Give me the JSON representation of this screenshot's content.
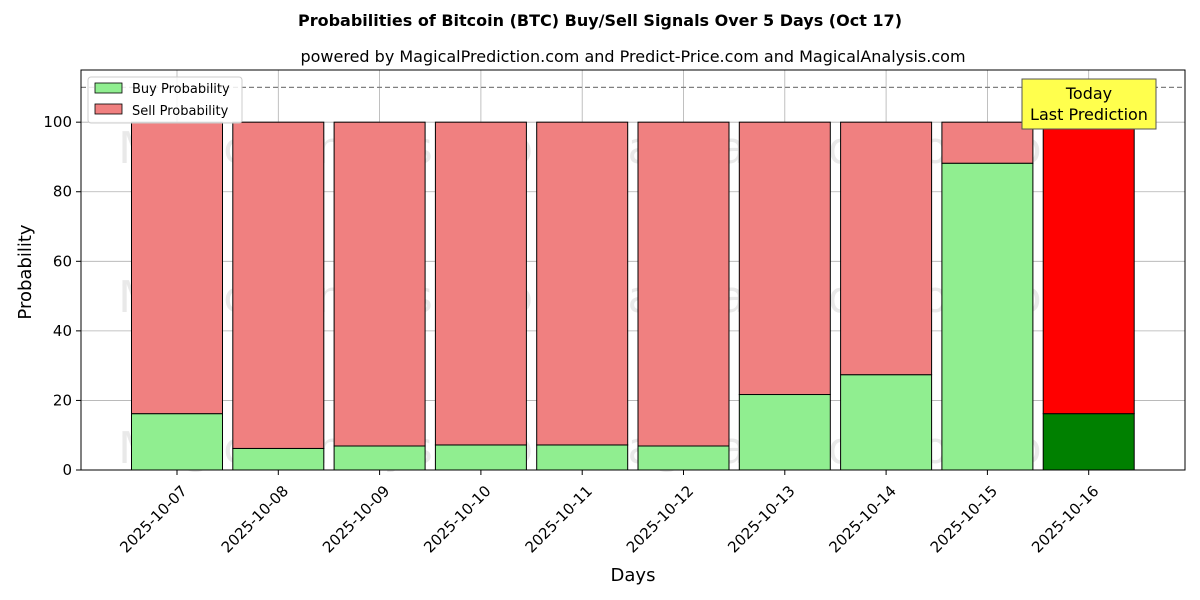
{
  "colors": {
    "buy": "#90ee90",
    "sell": "#f08080",
    "buy_last": "#008000",
    "sell_last": "#ff0000",
    "annotation_bg": "#ffff4d"
  },
  "chart_data": {
    "type": "bar",
    "stacked": true,
    "title": "Probabilities of Bitcoin (BTC) Buy/Sell Signals Over 5 Days (Oct 17)",
    "subtitle": "powered by MagicalPrediction.com and Predict-Price.com and MagicalAnalysis.com",
    "xlabel": "Days",
    "ylabel": "Probability",
    "ylim": [
      0,
      115
    ],
    "yticks": [
      0,
      20,
      40,
      60,
      80,
      100
    ],
    "grid": true,
    "legend_position": "top-left",
    "categories": [
      "2025-10-07",
      "2025-10-08",
      "2025-10-09",
      "2025-10-10",
      "2025-10-11",
      "2025-10-12",
      "2025-10-13",
      "2025-10-14",
      "2025-10-15",
      "2025-10-16"
    ],
    "series": [
      {
        "name": "Buy Probability",
        "values": [
          16.2,
          6.2,
          6.9,
          7.2,
          7.2,
          6.9,
          21.7,
          27.4,
          88.2,
          16.2
        ]
      },
      {
        "name": "Sell Probability",
        "values": [
          83.8,
          93.8,
          93.1,
          92.8,
          92.8,
          93.1,
          78.3,
          72.6,
          11.8,
          83.8
        ]
      }
    ],
    "reference_line": 110,
    "annotation": {
      "line1": "Today",
      "line2": "Last Prediction"
    },
    "watermarks": [
      "MagicalAnalysis.com",
      "MagicalPrediction.com"
    ]
  }
}
